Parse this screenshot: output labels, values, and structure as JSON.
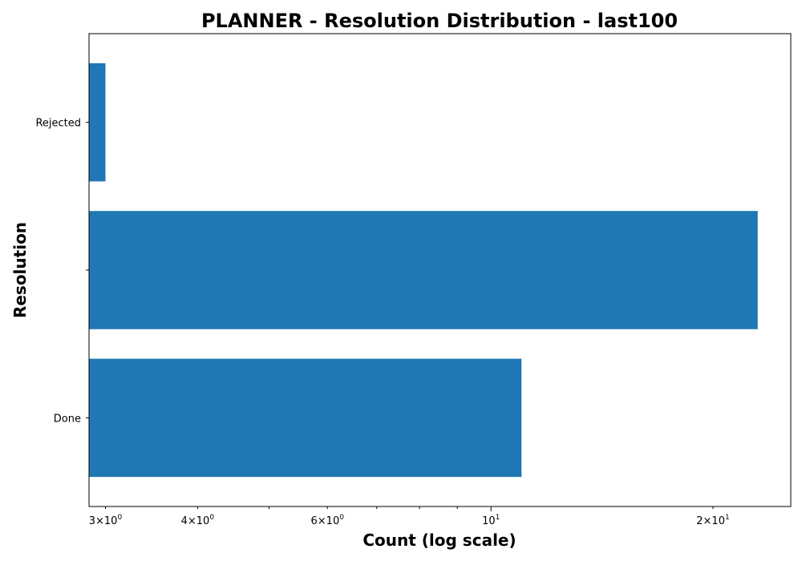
{
  "chart_data": {
    "type": "bar",
    "orientation": "horizontal",
    "title": "PLANNER - Resolution Distribution - last100",
    "xlabel": "Count (log scale)",
    "ylabel": "Resolution",
    "xscale": "log",
    "xlim": [
      2.85,
      25.5
    ],
    "categories": [
      "Done",
      "",
      "Rejected"
    ],
    "values": [
      11,
      23,
      3
    ],
    "bar_color": "#1f77b4",
    "x_major_ticks": [
      {
        "value": 10,
        "base": "10",
        "exp": "1"
      }
    ],
    "x_minor_ticks": [
      {
        "value": 3,
        "mant": "3",
        "base": "10",
        "exp": "0"
      },
      {
        "value": 4,
        "mant": "4",
        "base": "10",
        "exp": "0"
      },
      {
        "value": 6,
        "mant": "6",
        "base": "10",
        "exp": "0"
      },
      {
        "value": 20,
        "mant": "2",
        "base": "10",
        "exp": "1"
      }
    ],
    "x_minor_unlabeled": [
      5,
      7,
      8,
      9
    ],
    "times_symbol": "×",
    "grid": false,
    "legend": "none"
  }
}
